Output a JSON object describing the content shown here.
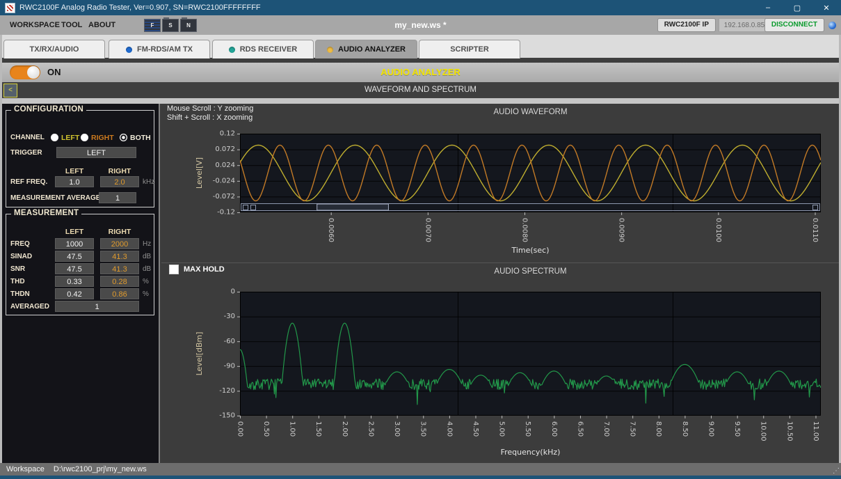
{
  "window": {
    "title": "RWC2100F Analog Radio Tester, Ver=0.907, SN=RWC2100FFFFFFFF",
    "minimize": "–",
    "maximize": "▢",
    "close": "✕"
  },
  "menu": {
    "items": [
      "WORKSPACE",
      "TOOL",
      "ABOUT"
    ],
    "toolbar_icon_letters": [
      "F",
      "S",
      "N"
    ],
    "workspace_file": "my_new.ws *",
    "ip_button_label": "RWC2100F IP",
    "ip_address": "192.168.0.85",
    "disconnect_label": "DISCONNECT"
  },
  "tabs": [
    {
      "label": "TX/RX/AUDIO",
      "led": null,
      "active": false
    },
    {
      "label": "FM-RDS/AM TX",
      "led": "#1f6bd0",
      "active": false
    },
    {
      "label": "RDS RECEIVER",
      "led": "#23a598",
      "active": false
    },
    {
      "label": "AUDIO ANALYZER",
      "led": "#eebc45",
      "active": true
    },
    {
      "label": "SCRIPTER",
      "led": null,
      "active": false
    }
  ],
  "analyzer": {
    "power_state": "ON",
    "title": "AUDIO ANALYZER",
    "title_color": "#f2e400",
    "section_title": "WAVEFORM AND SPECTRUM",
    "collapse_button": "<"
  },
  "configuration": {
    "legend": "CONFIGURATION",
    "channel_label": "CHANNEL",
    "channel_options": [
      {
        "label": "LEFT",
        "color": "#cfc22e",
        "selected": false
      },
      {
        "label": "RIGHT",
        "color": "#cc7a1e",
        "selected": false
      },
      {
        "label": "BOTH",
        "color": "#f0ead8",
        "selected": true
      }
    ],
    "trigger_label": "TRIGGER",
    "trigger_value": "LEFT",
    "col_headers": [
      "LEFT",
      "RIGHT"
    ],
    "ref_freq_label": "REF FREQ.",
    "ref_freq_left": "1.0",
    "ref_freq_right": "2.0",
    "ref_freq_unit": "kHz",
    "meas_avg_label": "MEASUREMENT AVERAGE",
    "meas_avg_value": "1"
  },
  "measurement": {
    "legend": "MEASUREMENT",
    "col_headers": [
      "LEFT",
      "RIGHT"
    ],
    "rows": [
      {
        "label": "FREQ",
        "left": "1000",
        "right": "2000",
        "unit": "Hz"
      },
      {
        "label": "SINAD",
        "left": "47.5",
        "right": "41.3",
        "unit": "dB"
      },
      {
        "label": "SNR",
        "left": "47.5",
        "right": "41.3",
        "unit": "dB"
      },
      {
        "label": "THD",
        "left": "0.33",
        "right": "0.28",
        "unit": "%"
      },
      {
        "label": "THDN",
        "left": "0.42",
        "right": "0.86",
        "unit": "%"
      }
    ],
    "averaged_label": "AVERAGED",
    "averaged_value": "1"
  },
  "chart_hints": {
    "line1": "Mouse Scroll : Y zooming",
    "line2": "Shift + Scroll : X zooming"
  },
  "max_hold_label": "MAX HOLD",
  "chart_data": [
    {
      "type": "line",
      "title": "AUDIO WAVEFORM",
      "xlabel": "Time(sec)",
      "ylabel": "Level[V]",
      "x_range_sec": [
        0.005061,
        0.011061
      ],
      "ylim": [
        -0.12,
        0.12
      ],
      "grid": true,
      "x_ticks": [
        {
          "value": 0.006,
          "label": "0.0060"
        },
        {
          "value": 0.007,
          "label": "0.0070"
        },
        {
          "value": 0.008,
          "label": "0.0080"
        },
        {
          "value": 0.009,
          "label": "0.0090"
        },
        {
          "value": 0.01,
          "label": "0.0100"
        },
        {
          "value": 0.011,
          "label": "0.0110"
        }
      ],
      "y_ticks": [
        {
          "value": 0.12,
          "label": "0.12"
        },
        {
          "value": 0.072,
          "label": "0.072"
        },
        {
          "value": 0.024,
          "label": "0.024"
        },
        {
          "value": -0.024,
          "label": "-0.024"
        },
        {
          "value": -0.072,
          "label": "-0.072"
        },
        {
          "value": -0.12,
          "label": "-0.12"
        }
      ],
      "series": [
        {
          "name": "LEFT",
          "frequency_hz": 1000,
          "amplitude_v": 0.085,
          "phase_rad": 0.0,
          "color": "#bfae2f"
        },
        {
          "name": "RIGHT",
          "frequency_hz": 2000,
          "amplitude_v": 0.085,
          "phase_rad": 1.9,
          "color": "#c27a26"
        }
      ],
      "scrollbar": {
        "thumb_frac": [
          0.132,
          0.255
        ]
      }
    },
    {
      "type": "line",
      "title": "AUDIO SPECTRUM",
      "xlabel": "Frequency(kHz)",
      "ylabel": "Level[dBm]",
      "xlim": [
        0,
        11.1
      ],
      "ylim": [
        -150,
        0
      ],
      "grid": true,
      "color": "#22984a",
      "noise_floor_dbm": -112,
      "x_ticks": [
        {
          "value": 0,
          "label": "0.00"
        },
        {
          "value": 0.5,
          "label": "0.50"
        },
        {
          "value": 1,
          "label": "1.00"
        },
        {
          "value": 1.5,
          "label": "1.50"
        },
        {
          "value": 2,
          "label": "2.00"
        },
        {
          "value": 2.5,
          "label": "2.50"
        },
        {
          "value": 3,
          "label": "3.00"
        },
        {
          "value": 3.5,
          "label": "3.50"
        },
        {
          "value": 4,
          "label": "4.00"
        },
        {
          "value": 4.5,
          "label": "4.50"
        },
        {
          "value": 5,
          "label": "5.00"
        },
        {
          "value": 5.5,
          "label": "5.50"
        },
        {
          "value": 6,
          "label": "6.00"
        },
        {
          "value": 6.5,
          "label": "6.50"
        },
        {
          "value": 7,
          "label": "7.00"
        },
        {
          "value": 7.5,
          "label": "7.50"
        },
        {
          "value": 8,
          "label": "8.00"
        },
        {
          "value": 8.5,
          "label": "8.50"
        },
        {
          "value": 9,
          "label": "9.00"
        },
        {
          "value": 9.5,
          "label": "9.50"
        },
        {
          "value": 10,
          "label": "10.00"
        },
        {
          "value": 10.5,
          "label": "10.50"
        },
        {
          "value": 11,
          "label": "11.00"
        }
      ],
      "y_ticks": [
        {
          "value": 0,
          "label": "0"
        },
        {
          "value": -30,
          "label": "-30"
        },
        {
          "value": -60,
          "label": "-60"
        },
        {
          "value": -90,
          "label": "-90"
        },
        {
          "value": -120,
          "label": "-120"
        },
        {
          "value": -150,
          "label": "-150"
        }
      ],
      "peaks": [
        {
          "khz": 0.0,
          "dbm": -70
        },
        {
          "khz": 1.0,
          "dbm": -38
        },
        {
          "khz": 2.0,
          "dbm": -38
        },
        {
          "khz": 3.0,
          "dbm": -97
        },
        {
          "khz": 4.0,
          "dbm": -94
        },
        {
          "khz": 4.6,
          "dbm": -101
        },
        {
          "khz": 5.35,
          "dbm": -98
        },
        {
          "khz": 6.0,
          "dbm": -96
        },
        {
          "khz": 7.0,
          "dbm": -102
        },
        {
          "khz": 8.5,
          "dbm": -88
        },
        {
          "khz": 9.5,
          "dbm": -97
        },
        {
          "khz": 10.3,
          "dbm": -96
        }
      ]
    }
  ],
  "status_bar": {
    "label": "Workspace",
    "path": "D:\\rwc2100_prj\\my_new.ws"
  }
}
